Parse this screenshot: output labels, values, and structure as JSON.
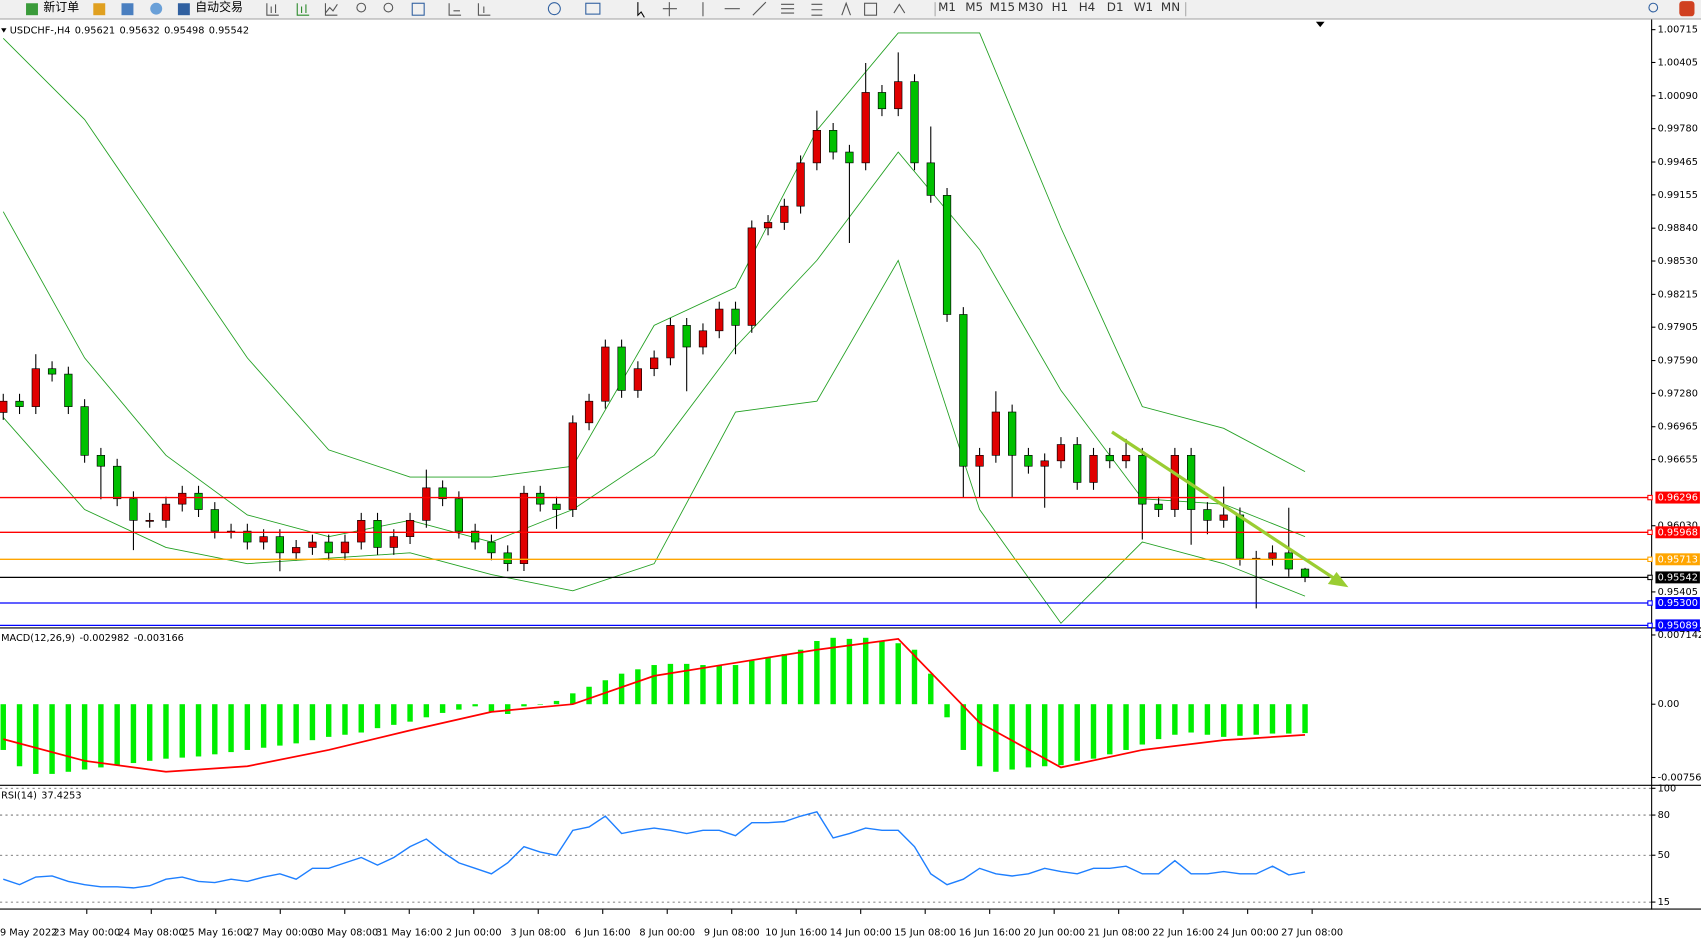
{
  "toolbar": {
    "new_order": "新订单",
    "auto_trading": "自动交易",
    "timeframes": [
      "M1",
      "M5",
      "M15",
      "M30",
      "H1",
      "H4",
      "D1",
      "W1",
      "MN"
    ]
  },
  "time_axis": [
    "9 May 2022",
    "23 May 00:00",
    "24 May 08:00",
    "25 May 16:00",
    "27 May 00:00",
    "30 May 08:00",
    "31 May 16:00",
    "2 Jun 00:00",
    "3 Jun 08:00",
    "6 Jun 16:00",
    "8 Jun 00:00",
    "9 Jun 08:00",
    "10 Jun 16:00",
    "14 Jun 00:00",
    "15 Jun 08:00",
    "16 Jun 16:00",
    "20 Jun 00:00",
    "21 Jun 08:00",
    "22 Jun 16:00",
    "24 Jun 00:00",
    "27 Jun 08:00"
  ],
  "chart_data": [
    {
      "type": "candlestick",
      "title": "USDCHF-,H4",
      "up_color": "#e00000",
      "down_color": "#00c000",
      "open": [
        0.971,
        0.97206,
        0.97155,
        0.97513,
        0.97462,
        0.97155,
        0.96695,
        0.96592,
        0.96285,
        0.96081,
        0.96081,
        0.96234,
        0.96337,
        0.96183,
        0.95979,
        0.95979,
        0.95876,
        0.95927,
        0.95774,
        0.95825,
        0.95876,
        0.95774,
        0.95876,
        0.96081,
        0.95825,
        0.95927,
        0.96081,
        0.96388,
        0.96285,
        0.95979,
        0.95876,
        0.95774,
        0.95672,
        0.96337,
        0.96234,
        0.96183,
        0.97002,
        0.97206,
        0.97718,
        0.97308,
        0.97513,
        0.97615,
        0.97922,
        0.97718,
        0.97871,
        0.98076,
        0.97922,
        0.98843,
        0.98894,
        0.99048,
        0.99457,
        0.99764,
        0.99559,
        0.99457,
        1.00122,
        0.99968,
        1.00224,
        0.99457,
        0.9915,
        0.98025,
        0.96592,
        0.96695,
        0.97104,
        0.96695,
        0.96592,
        0.96643,
        0.96797,
        0.96439,
        0.96695,
        0.96643,
        0.96695,
        0.96234,
        0.96183,
        0.96695,
        0.96183,
        0.96081,
        0.96132,
        0.95723,
        0.95723,
        0.95774,
        0.95621
      ],
      "high": [
        0.97276,
        0.97276,
        0.9765,
        0.97583,
        0.97532,
        0.97225,
        0.96765,
        0.96662,
        0.96355,
        0.96151,
        0.96304,
        0.96407,
        0.96407,
        0.96253,
        0.96049,
        0.96049,
        0.95997,
        0.95997,
        0.95895,
        0.95946,
        0.95946,
        0.95946,
        0.96151,
        0.96151,
        0.95997,
        0.96151,
        0.9656,
        0.96458,
        0.96355,
        0.96049,
        0.95946,
        0.95844,
        0.96407,
        0.96407,
        0.96304,
        0.97072,
        0.97276,
        0.97788,
        0.97788,
        0.97583,
        0.97685,
        0.97992,
        0.97992,
        0.97941,
        0.98146,
        0.98146,
        0.98913,
        0.98964,
        0.99118,
        0.99527,
        0.9995,
        0.99834,
        0.99627,
        1.004,
        1.00192,
        1.005,
        1.00294,
        0.998,
        0.9922,
        0.98095,
        0.96765,
        0.973,
        0.97174,
        0.96765,
        0.96713,
        0.96867,
        0.96867,
        0.96765,
        0.96765,
        0.9685,
        0.96765,
        0.96304,
        0.96765,
        0.96765,
        0.96253,
        0.964,
        0.96202,
        0.95793,
        0.95844,
        0.962,
        0.95632
      ],
      "low": [
        0.9703,
        0.97085,
        0.97085,
        0.97392,
        0.97085,
        0.96625,
        0.9628,
        0.96215,
        0.958,
        0.96011,
        0.96011,
        0.96164,
        0.96113,
        0.95909,
        0.95909,
        0.95806,
        0.95806,
        0.956,
        0.95704,
        0.95755,
        0.95704,
        0.95704,
        0.95806,
        0.95755,
        0.95755,
        0.95857,
        0.96011,
        0.96215,
        0.95909,
        0.95806,
        0.95704,
        0.956,
        0.95602,
        0.96164,
        0.96,
        0.96113,
        0.96932,
        0.97136,
        0.97238,
        0.97238,
        0.97443,
        0.97545,
        0.973,
        0.97648,
        0.97801,
        0.9765,
        0.97852,
        0.98773,
        0.98824,
        0.98978,
        0.99387,
        0.99489,
        0.987,
        0.99387,
        0.99898,
        0.99898,
        0.99387,
        0.9908,
        0.97955,
        0.963,
        0.963,
        0.96625,
        0.963,
        0.96522,
        0.962,
        0.96573,
        0.96369,
        0.96369,
        0.96573,
        0.96573,
        0.959,
        0.96113,
        0.96113,
        0.9585,
        0.9595,
        0.96011,
        0.95653,
        0.9525,
        0.95653,
        0.9555,
        0.95498
      ],
      "close": [
        0.97206,
        0.97155,
        0.97513,
        0.97462,
        0.97155,
        0.96695,
        0.96592,
        0.96285,
        0.96081,
        0.96081,
        0.96234,
        0.96337,
        0.96183,
        0.95979,
        0.95979,
        0.95876,
        0.95927,
        0.95774,
        0.95825,
        0.95876,
        0.95774,
        0.95876,
        0.96081,
        0.95825,
        0.95927,
        0.96081,
        0.96388,
        0.96285,
        0.95979,
        0.95876,
        0.95774,
        0.95672,
        0.96337,
        0.96234,
        0.96183,
        0.97002,
        0.97206,
        0.97718,
        0.97308,
        0.97513,
        0.97615,
        0.97922,
        0.97718,
        0.97871,
        0.98076,
        0.97922,
        0.98843,
        0.98894,
        0.99048,
        0.99457,
        0.99764,
        0.99559,
        0.99457,
        1.00122,
        0.99968,
        1.00224,
        0.99457,
        0.9915,
        0.98025,
        0.96592,
        0.96695,
        0.97104,
        0.96695,
        0.96592,
        0.96643,
        0.96797,
        0.96439,
        0.96695,
        0.96643,
        0.96695,
        0.96234,
        0.96183,
        0.96695,
        0.96183,
        0.96081,
        0.96132,
        0.95723,
        0.95723,
        0.95774,
        0.95621,
        0.95542
      ],
      "bands": {
        "color": "#22a022",
        "x": [
          0,
          5,
          10,
          15,
          20,
          25,
          30,
          35,
          40,
          45,
          50,
          55,
          60,
          65,
          70,
          75,
          80
        ],
        "upper": [
          1.00633,
          0.99866,
          0.98741,
          0.97615,
          0.96746,
          0.9649,
          0.9649,
          0.96592,
          0.97922,
          0.9828,
          0.99764,
          1.00684,
          1.00684,
          0.98843,
          0.97155,
          0.9695,
          0.96541
        ],
        "middle": [
          0.98996,
          0.97615,
          0.96695,
          0.96132,
          0.95927,
          0.96081,
          0.95876,
          0.96183,
          0.96695,
          0.97718,
          0.98536,
          0.99559,
          0.98638,
          0.97308,
          0.96285,
          0.96234,
          0.95927
        ],
        "lower": [
          0.97053,
          0.96183,
          0.95825,
          0.95672,
          0.95723,
          0.95774,
          0.95569,
          0.95416,
          0.95672,
          0.97104,
          0.97206,
          0.98536,
          0.96183,
          0.95109,
          0.95876,
          0.95672,
          0.95365
        ]
      },
      "hlines": [
        {
          "value": 0.96296,
          "color": "#ff0000"
        },
        {
          "value": 0.95968,
          "color": "#ff0000"
        },
        {
          "value": 0.95713,
          "color": "#ffa500"
        },
        {
          "value": 0.95542,
          "color": "#000000"
        },
        {
          "value": 0.953,
          "label": "0.95300",
          "color": "#0000ff"
        },
        {
          "value": 0.95089,
          "color": "#0000ff"
        }
      ],
      "ylim": [
        0.9507,
        1.0079
      ],
      "yticks": [
        1.00715,
        1.00405,
        {
          "value": 1.0009,
          "label": "1.00090"
        },
        {
          "value": 0.9978,
          "label": "0.99780"
        },
        0.99465,
        0.99155,
        {
          "value": 0.9884,
          "label": "0.98840"
        },
        {
          "value": 0.9853,
          "label": "0.98530"
        },
        0.98215,
        0.97905,
        {
          "value": 0.9759,
          "label": "0.97590"
        },
        {
          "value": 0.9728,
          "label": "0.97280"
        },
        0.96965,
        0.96655,
        {
          "value": 0.9603,
          "label": "0.96030"
        },
        0.95405
      ]
    },
    {
      "type": "macd",
      "title": "MACD(12,26,9)",
      "histogram_color": "#00ee00",
      "signal_color": "#ff0000",
      "histogram": [
        -0.00472,
        -0.0064,
        -0.00719,
        -0.00719,
        -0.00697,
        -0.00674,
        -0.00652,
        -0.00629,
        -0.00607,
        -0.00584,
        -0.00562,
        -0.00551,
        -0.00539,
        -0.00517,
        -0.00494,
        -0.00472,
        -0.00449,
        -0.00427,
        -0.00404,
        -0.00371,
        -0.00337,
        -0.00315,
        -0.00292,
        -0.00247,
        -0.00213,
        -0.0018,
        -0.00135,
        -0.0009,
        -0.00056,
        -0.00022,
        -0.00079,
        -0.00101,
        -0.00022,
        2e-05,
        0.00034,
        0.00112,
        0.0018,
        0.00247,
        0.00315,
        0.0036,
        0.00404,
        0.00416,
        0.00416,
        0.00404,
        0.00404,
        0.00404,
        0.00449,
        0.00483,
        0.00517,
        0.00562,
        0.00652,
        0.00685,
        0.00674,
        0.00685,
        0.00652,
        0.00629,
        0.00562,
        0.00315,
        -0.00135,
        -0.00472,
        -0.0064,
        -0.00697,
        -0.00674,
        -0.00652,
        -0.0064,
        -0.00629,
        -0.00584,
        -0.00562,
        -0.00517,
        -0.00472,
        -0.00416,
        -0.0036,
        -0.00315,
        -0.00292,
        -0.00315,
        -0.00337,
        -0.00326,
        -0.00315,
        -0.00303,
        -0.00303,
        -0.002982
      ],
      "signal": {
        "x": [
          0,
          5,
          10,
          15,
          20,
          25,
          30,
          35,
          40,
          45,
          50,
          55,
          60,
          65,
          70,
          75,
          80
        ],
        "values": [
          -0.0036,
          -0.00584,
          -0.00697,
          -0.0064,
          -0.00472,
          -0.0027,
          -0.00079,
          0,
          0.00292,
          0.00427,
          0.00562,
          0.00674,
          -0.00191,
          -0.00652,
          -0.00472,
          -0.00371,
          -0.003166
        ]
      },
      "ylim": [
        -0.0082,
        0.0077
      ],
      "yticks": [
        0.007142,
        {
          "value": 0,
          "label": "0.00"
        },
        -0.007561
      ]
    },
    {
      "type": "line",
      "title": "RSI(14)",
      "color": "#1e7fff",
      "grid": true,
      "values": [
        32.1,
        28.0,
        33.7,
        34.5,
        30.4,
        28.0,
        26.4,
        26.4,
        25.6,
        27.2,
        32.1,
        33.7,
        30.4,
        29.6,
        32.1,
        30.4,
        33.7,
        36.1,
        32.1,
        40.2,
        40.2,
        44.3,
        48.3,
        42.6,
        48.3,
        56.4,
        62.1,
        52.4,
        44.3,
        40.2,
        36.1,
        44.3,
        56.4,
        52.4,
        49.9,
        68.6,
        71.1,
        79.2,
        66.2,
        68.6,
        70.3,
        68.6,
        66.2,
        68.6,
        68.6,
        64.6,
        74.3,
        74.3,
        75.1,
        79.2,
        82.4,
        62.9,
        66.2,
        70.3,
        68.6,
        68.6,
        56.4,
        36.1,
        28.0,
        32.1,
        40.2,
        36.1,
        34.5,
        36.1,
        40.2,
        37.8,
        36.1,
        40.2,
        40.2,
        41.8,
        36.1,
        36.1,
        45.9,
        36.1,
        36.1,
        37.8,
        36.1,
        36.1,
        41.8,
        35.3,
        37.4253
      ],
      "ylim": [
        11,
        101
      ],
      "yticks": [
        100,
        80,
        50,
        15
      ]
    }
  ]
}
